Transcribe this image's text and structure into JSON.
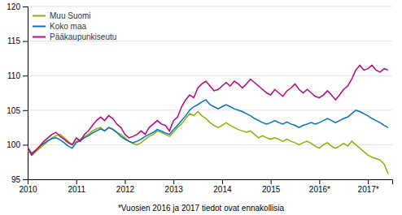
{
  "chart_data": {
    "type": "line",
    "footnote": "*Vuosien 2016 ja 2017 tiedot ovat ennakollisia",
    "x": [
      2010,
      2010.0833333333333,
      2010.1666666666667,
      2010.25,
      2010.3333333333333,
      2010.4166666666667,
      2010.5,
      2010.5833333333333,
      2010.6666666666667,
      2010.75,
      2010.8333333333333,
      2010.9166666666667,
      2011,
      2011.0833333333333,
      2011.1666666666667,
      2011.25,
      2011.3333333333333,
      2011.4166666666667,
      2011.5,
      2011.5833333333333,
      2011.6666666666667,
      2011.75,
      2011.8333333333333,
      2011.9166666666667,
      2012,
      2012.0833333333333,
      2012.1666666666667,
      2012.25,
      2012.3333333333333,
      2012.4166666666667,
      2012.5,
      2012.5833333333333,
      2012.6666666666667,
      2012.75,
      2012.8333333333333,
      2012.9166666666667,
      2013,
      2013.0833333333333,
      2013.1666666666667,
      2013.25,
      2013.3333333333333,
      2013.4166666666667,
      2013.5,
      2013.5833333333333,
      2013.6666666666667,
      2013.75,
      2013.8333333333333,
      2013.9166666666667,
      2014,
      2014.0833333333333,
      2014.1666666666667,
      2014.25,
      2014.3333333333333,
      2014.4166666666667,
      2014.5,
      2014.5833333333333,
      2014.6666666666667,
      2014.75,
      2014.8333333333333,
      2014.9166666666667,
      2015,
      2015.0833333333333,
      2015.1666666666667,
      2015.25,
      2015.3333333333333,
      2015.4166666666667,
      2015.5,
      2015.5833333333333,
      2015.6666666666667,
      2015.75,
      2015.8333333333333,
      2015.9166666666667,
      2016,
      2016.0833333333333,
      2016.1666666666667,
      2016.25,
      2016.3333333333333,
      2016.4166666666667,
      2016.5,
      2016.5833333333333,
      2016.6666666666667,
      2016.75,
      2016.8333333333333,
      2016.9166666666667,
      2017,
      2017.0833333333333,
      2017.1666666666667,
      2017.25,
      2017.3333333333333,
      2017.4166666666667
    ],
    "series": [
      {
        "name": "Muu Suomi",
        "color": "#8db000",
        "values": [
          99.2,
          98.5,
          99.0,
          99.5,
          100.0,
          100.5,
          101.0,
          101.3,
          101.5,
          101.0,
          100.5,
          100.0,
          100.5,
          100.8,
          101.2,
          101.5,
          102.0,
          102.3,
          102.5,
          102.0,
          102.5,
          102.3,
          101.8,
          101.5,
          101.0,
          100.5,
          100.2,
          100.0,
          100.3,
          100.8,
          101.2,
          101.5,
          102.0,
          101.8,
          101.5,
          101.2,
          101.8,
          102.5,
          103.0,
          103.8,
          104.5,
          104.2,
          104.8,
          104.2,
          103.8,
          103.2,
          102.8,
          102.5,
          102.8,
          103.2,
          102.8,
          102.5,
          102.2,
          102.0,
          101.8,
          102.0,
          101.5,
          101.0,
          101.3,
          101.0,
          100.8,
          101.0,
          100.8,
          100.5,
          100.8,
          100.5,
          100.3,
          100.0,
          100.3,
          100.5,
          100.2,
          99.8,
          99.5,
          100.0,
          100.3,
          99.8,
          99.5,
          99.8,
          100.2,
          99.8,
          100.5,
          100.0,
          99.5,
          99.0,
          98.5,
          98.2,
          98.0,
          97.8,
          97.2,
          95.8
        ]
      },
      {
        "name": "Koko maa",
        "color": "#0070c0",
        "values": [
          99.5,
          98.8,
          99.2,
          99.8,
          100.2,
          100.6,
          100.9,
          101.0,
          100.7,
          100.3,
          99.8,
          99.5,
          100.3,
          100.6,
          101.0,
          101.3,
          101.7,
          102.0,
          102.3,
          102.0,
          102.5,
          102.2,
          101.8,
          101.2,
          100.8,
          100.5,
          100.3,
          100.5,
          100.8,
          101.2,
          101.5,
          101.8,
          102.2,
          102.0,
          101.7,
          101.5,
          102.2,
          102.8,
          103.5,
          104.2,
          105.0,
          105.5,
          105.8,
          106.2,
          106.5,
          105.8,
          105.5,
          105.2,
          105.5,
          105.8,
          105.5,
          105.2,
          105.0,
          104.8,
          104.5,
          104.2,
          103.8,
          103.5,
          103.2,
          103.0,
          103.2,
          103.5,
          103.2,
          103.0,
          103.3,
          103.0,
          102.8,
          102.5,
          102.8,
          103.0,
          103.2,
          103.0,
          103.2,
          103.5,
          103.8,
          103.5,
          103.2,
          103.5,
          103.8,
          104.0,
          104.5,
          105.0,
          104.8,
          104.5,
          104.2,
          103.8,
          103.5,
          103.2,
          102.8,
          102.5
        ]
      },
      {
        "name": "Pääkaupunkiseutu",
        "color": "#bf0080",
        "values": [
          99.7,
          98.5,
          99.2,
          99.8,
          100.5,
          101.0,
          101.5,
          101.8,
          101.2,
          100.8,
          100.3,
          100.0,
          101.0,
          100.5,
          101.5,
          102.0,
          102.8,
          103.5,
          104.0,
          103.5,
          104.2,
          103.8,
          103.0,
          102.5,
          101.5,
          101.0,
          101.2,
          101.5,
          102.0,
          101.5,
          102.5,
          103.0,
          103.5,
          103.0,
          102.8,
          102.0,
          103.5,
          104.0,
          105.5,
          106.5,
          107.2,
          106.8,
          108.2,
          108.8,
          109.2,
          108.5,
          107.8,
          108.0,
          108.5,
          109.0,
          108.5,
          109.2,
          108.8,
          108.2,
          108.8,
          109.5,
          109.0,
          108.5,
          108.0,
          107.5,
          107.2,
          108.0,
          107.5,
          107.0,
          107.8,
          108.2,
          108.8,
          108.0,
          107.5,
          108.0,
          107.5,
          107.0,
          106.8,
          107.2,
          107.8,
          107.2,
          106.5,
          107.2,
          108.0,
          108.5,
          109.5,
          110.8,
          111.5,
          110.8,
          111.0,
          111.5,
          110.8,
          110.5,
          111.0,
          110.8
        ]
      }
    ],
    "xlim": [
      2010,
      2017.5
    ],
    "xticks": [
      2010,
      2011,
      2012,
      2013,
      2014,
      2015,
      {
        "value": 2016,
        "label": "2016*"
      },
      {
        "value": 2017,
        "label": "2017*"
      }
    ],
    "ylim": [
      95,
      120
    ],
    "yticks": [
      95,
      100,
      105,
      110,
      115,
      120
    ],
    "grid": true,
    "legend": "upper left"
  }
}
